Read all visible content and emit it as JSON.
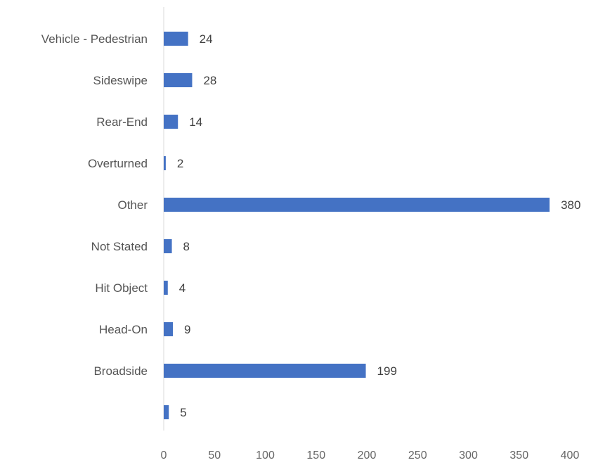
{
  "chart_data": {
    "type": "bar",
    "orientation": "horizontal",
    "categories": [
      "Vehicle - Pedestrian",
      "Sideswipe",
      "Rear-End",
      "Overturned",
      "Other",
      "Not Stated",
      "Hit Object",
      "Head-On",
      "Broadside",
      ""
    ],
    "values": [
      24,
      28,
      14,
      2,
      380,
      8,
      4,
      9,
      199,
      5
    ],
    "value_labels": [
      "24",
      "28",
      "14",
      "2",
      "380",
      "8",
      "4",
      "9",
      "199",
      "5"
    ],
    "xlim": [
      0,
      400
    ],
    "x_ticks": [
      0,
      50,
      100,
      150,
      200,
      250,
      300,
      350,
      400
    ],
    "x_tick_labels": [
      "0",
      "50",
      "100",
      "150",
      "200",
      "250",
      "300",
      "350",
      "400"
    ],
    "title": "",
    "xlabel": "",
    "ylabel": "",
    "grid": false,
    "bar_color": "#4472C4"
  }
}
